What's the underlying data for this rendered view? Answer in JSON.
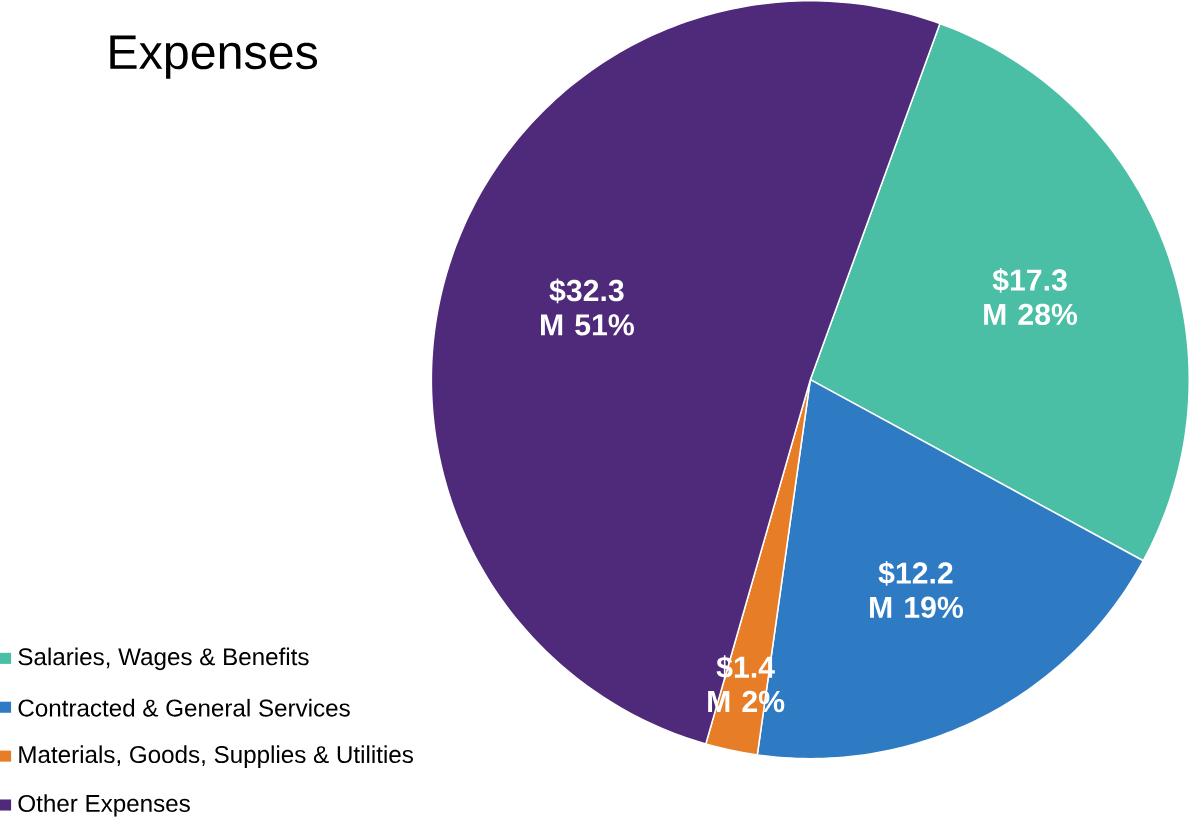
{
  "chart_data": {
    "type": "pie",
    "title": "Expenses",
    "categories": [
      "Salaries, Wages & Benefits",
      "Contracted & General Services",
      "Materials, Goods, Supplies & Utilities",
      "Other Expenses"
    ],
    "values": [
      17.3,
      12.2,
      1.4,
      32.3
    ],
    "colors": [
      "#4bbfa5",
      "#2e7bc4",
      "#e87d27",
      "#4f2a7a"
    ],
    "value_labels": [
      "$17.3 M 28%",
      "$12.2 M 19%",
      "$1.4 M 2%",
      "$32.3 M 51%"
    ],
    "legend": "bottom left"
  }
}
